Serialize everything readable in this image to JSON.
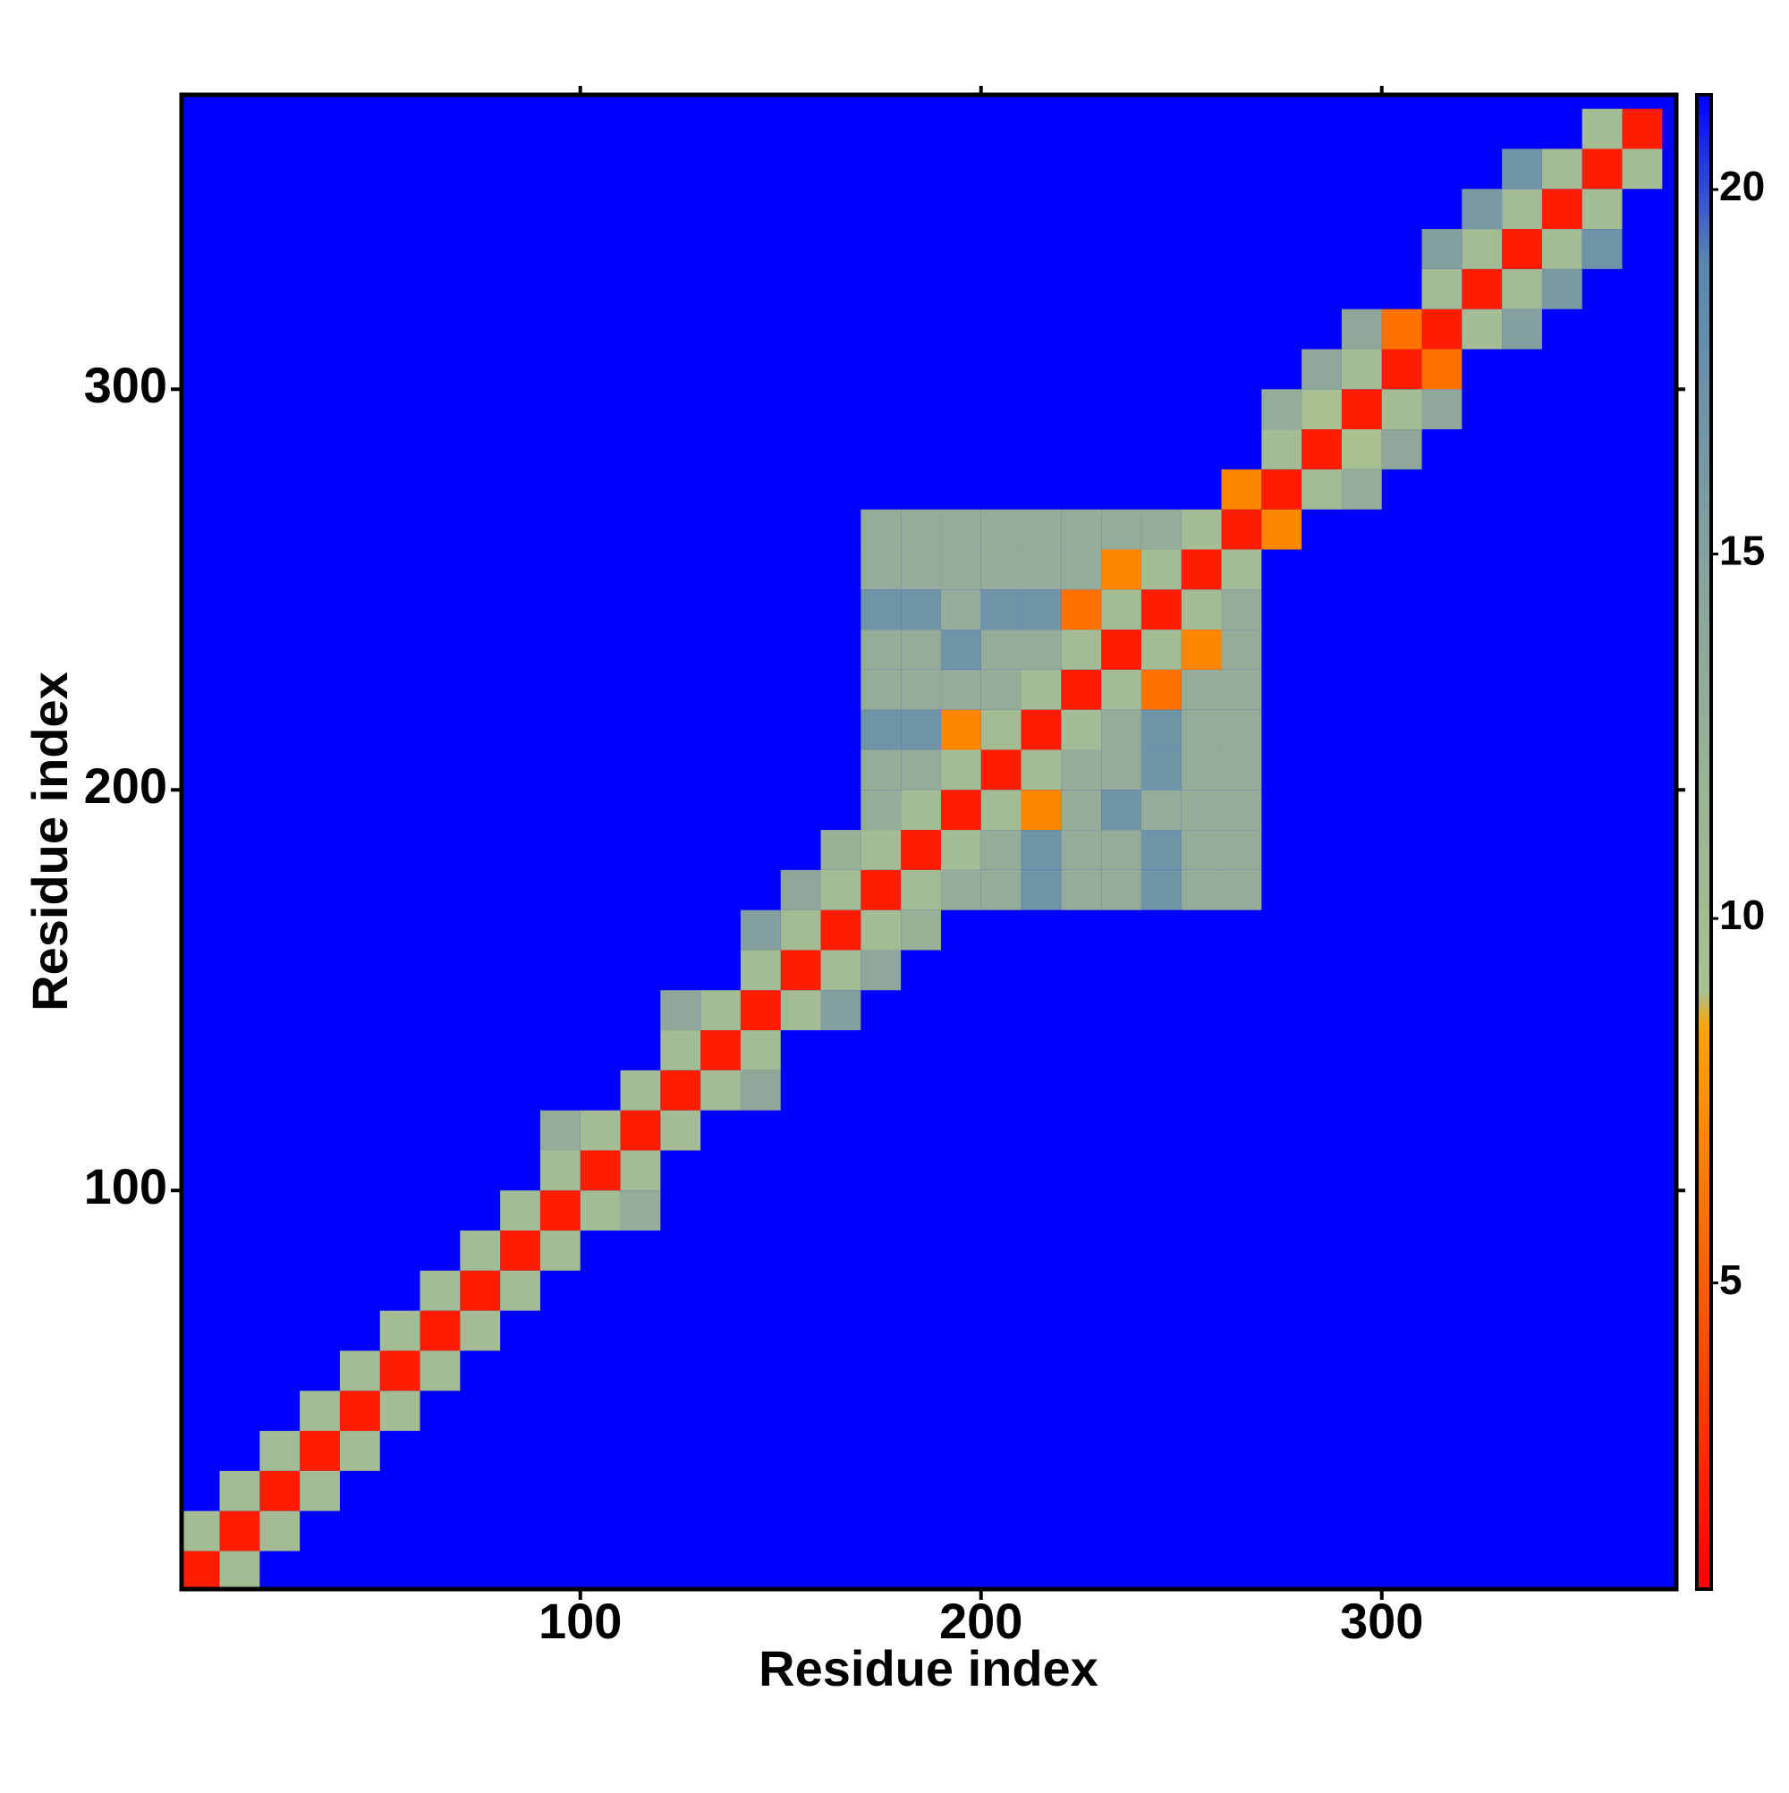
{
  "chart_data": {
    "type": "heatmap",
    "xlabel": "Residue index",
    "ylabel": "Residue index",
    "xlim": [
      0.5,
      373.5
    ],
    "ylim": [
      0.5,
      373.5
    ],
    "xticks": [
      100,
      200,
      300
    ],
    "yticks": [
      100,
      200,
      300
    ],
    "background": "#0000ff",
    "colorscale": [
      [
        0.8,
        "#ff0000"
      ],
      [
        4,
        "#ff4a00"
      ],
      [
        8.5,
        "#ffa500"
      ],
      [
        9,
        "#a9c191"
      ],
      [
        14,
        "#8fa79a"
      ],
      [
        19,
        "#5a86b0"
      ],
      [
        21.3,
        "#0000ff"
      ]
    ],
    "colorbar": {
      "lim": [
        0.8,
        21.3
      ],
      "ticks": [
        5,
        10,
        15,
        20
      ]
    },
    "x": [
      5,
      15,
      25,
      35,
      45,
      55,
      65,
      75,
      85,
      95,
      105,
      115,
      125,
      135,
      145,
      155,
      165,
      175,
      185,
      195,
      205,
      215,
      225,
      235,
      245,
      255,
      265,
      275,
      285,
      295,
      305,
      315,
      325,
      335,
      345,
      355,
      365,
      5,
      15,
      25,
      35,
      45,
      55,
      65,
      75,
      85,
      95,
      105,
      115,
      125,
      135,
      145,
      155,
      165,
      175,
      185,
      195,
      205,
      215,
      225,
      235,
      245,
      255,
      265,
      275,
      285,
      295,
      305,
      315,
      325,
      335,
      345,
      355,
      175,
      175,
      175,
      175,
      175,
      175,
      175,
      175,
      185,
      185,
      185,
      185,
      185,
      185,
      185,
      195,
      195,
      195,
      195,
      195,
      195,
      205,
      205,
      205,
      205,
      205,
      215,
      215,
      215,
      215,
      225,
      225,
      225,
      235,
      235,
      245,
      275,
      285,
      295,
      315,
      325,
      95,
      125,
      145,
      155,
      165,
      335
    ],
    "y": [
      5,
      15,
      25,
      35,
      45,
      55,
      65,
      75,
      85,
      95,
      105,
      115,
      125,
      135,
      145,
      155,
      165,
      175,
      185,
      195,
      205,
      215,
      225,
      235,
      245,
      255,
      265,
      275,
      285,
      295,
      305,
      315,
      325,
      335,
      345,
      355,
      365,
      15,
      25,
      35,
      45,
      55,
      65,
      75,
      85,
      95,
      105,
      115,
      125,
      135,
      145,
      155,
      165,
      175,
      185,
      195,
      205,
      215,
      225,
      235,
      245,
      255,
      265,
      275,
      285,
      295,
      305,
      315,
      325,
      335,
      345,
      355,
      365,
      195,
      205,
      215,
      225,
      235,
      245,
      255,
      265,
      205,
      215,
      225,
      235,
      245,
      255,
      265,
      215,
      225,
      235,
      245,
      255,
      265,
      225,
      235,
      245,
      255,
      265,
      235,
      245,
      255,
      265,
      245,
      255,
      265,
      255,
      265,
      265,
      295,
      305,
      315,
      335,
      345,
      115,
      145,
      165,
      175,
      185,
      355
    ],
    "values": [
      2,
      2,
      2,
      2,
      2,
      2,
      2,
      2,
      2,
      2,
      2,
      2,
      2,
      2,
      2,
      2,
      2,
      2,
      2,
      2,
      2,
      2,
      2,
      2,
      2,
      2,
      2,
      2,
      2,
      2,
      2,
      2,
      2,
      2,
      2,
      2,
      2,
      10,
      10,
      10,
      10,
      10,
      10,
      10,
      10,
      10,
      10,
      10,
      10,
      10,
      10,
      10,
      10,
      10,
      10,
      10,
      10,
      10,
      10,
      10,
      10,
      10,
      10,
      7,
      10,
      9,
      10,
      6,
      10,
      10,
      10,
      10,
      10,
      13,
      13,
      17,
      13,
      13,
      17,
      13,
      13,
      13,
      17,
      13,
      13,
      17,
      13,
      13,
      7,
      13,
      17,
      13,
      13,
      13,
      13,
      13,
      17,
      13,
      13,
      13,
      17,
      13,
      13,
      6,
      13,
      13,
      7,
      13,
      13,
      13,
      14,
      14,
      15,
      16,
      13,
      14,
      15,
      14,
      12,
      17
    ]
  }
}
